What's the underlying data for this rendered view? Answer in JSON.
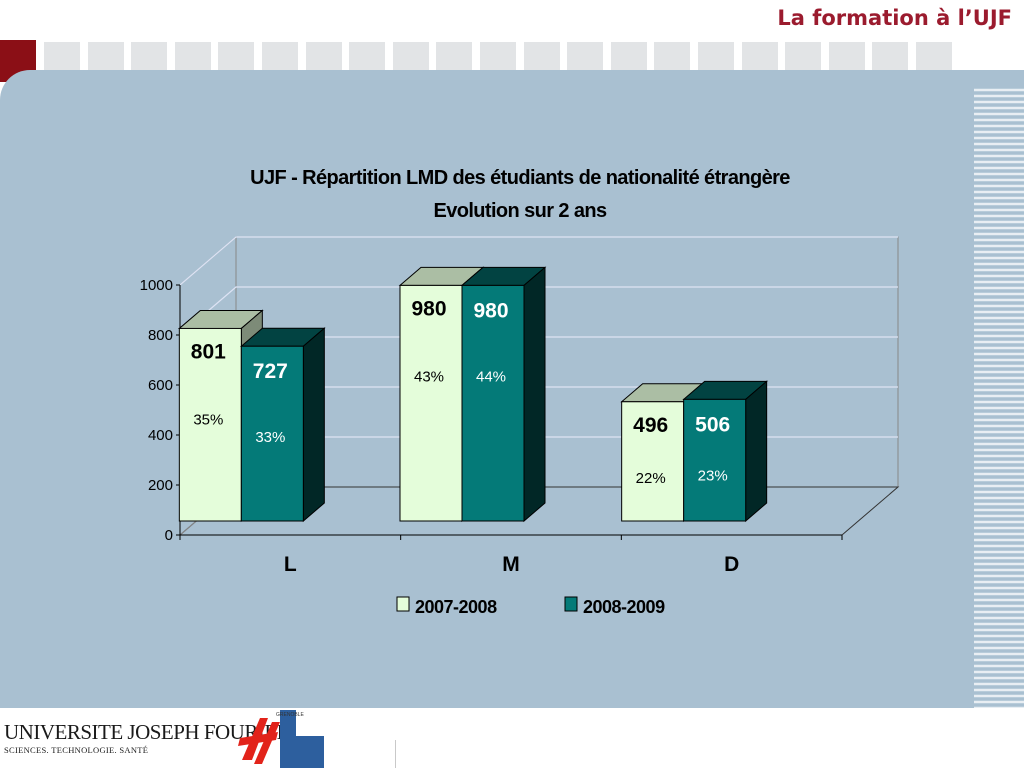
{
  "header": {
    "title": "La formation à l’UJF"
  },
  "footer": {
    "logo_line1": "UNIVERSITE JOSEPH FOURIER",
    "logo_line2": "SCIENCES. TECHNOLOGIE. SANTÉ",
    "logo_vertical": "GRENOBLE"
  },
  "colors": {
    "accent": "#9b1b2e",
    "panel": "#a9c0d1",
    "series_2007": "#e4fdda",
    "series_2008": "#047a78"
  },
  "chart_data": {
    "type": "bar",
    "title": "UJF - Répartition LMD des étudiants de nationalité étrangère",
    "subtitle": "Evolution sur 2 ans",
    "categories": [
      "L",
      "M",
      "D"
    ],
    "ylim": [
      0,
      1000
    ],
    "yticks": [
      "0",
      "200",
      "400",
      "600",
      "800",
      "1000"
    ],
    "grid": true,
    "legend_position": "bottom",
    "series": [
      {
        "name": "2007-2008",
        "values": [
          801,
          980,
          496
        ],
        "labels": [
          "801",
          "980",
          "496"
        ],
        "percents": [
          "35%",
          "43%",
          "22%"
        ]
      },
      {
        "name": "2008-2009",
        "values": [
          727,
          980,
          506
        ],
        "labels": [
          "727",
          "980",
          "506"
        ],
        "percents": [
          "33%",
          "44%",
          "23%"
        ]
      }
    ]
  }
}
